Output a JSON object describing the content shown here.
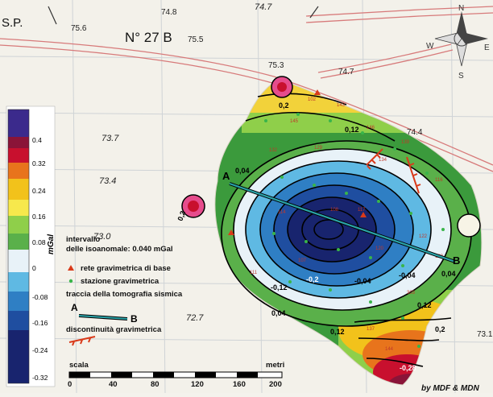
{
  "map": {
    "sheet_text": "S.P.",
    "sheet_number": "N° 27 B",
    "elevations": [
      "75.6",
      "74.8",
      "75.5",
      "74.7",
      "75.3",
      "74.7",
      "73.7",
      "74.4",
      "73.4",
      "73.0",
      "72.7",
      "73.1"
    ],
    "contour_values": [
      "0,2",
      "0,12",
      "0,04",
      "0,2",
      "-0,12",
      "-0,2",
      "-0,04",
      "-0,04",
      "0,04",
      "0,04",
      "0,12",
      "0,12",
      "0,2",
      "-0,28"
    ],
    "profile": {
      "start_label": "A",
      "end_label": "B"
    },
    "credit": "by MDF & MDN",
    "compass": {
      "n": "N",
      "s": "S",
      "e": "E",
      "w": "W"
    }
  },
  "legend": {
    "unit": "mGal",
    "ramp_values": [
      "0.4",
      "0.32",
      "0.24",
      "0.16",
      "0.08",
      "0",
      "-0.08",
      "-0.16",
      "-0.24",
      "-0.32"
    ],
    "interval_title": "intervallo",
    "interval_text": "delle isoanomale: 0.040 mGal",
    "base_network": "rete gravimetrica di base",
    "station": "stazione gravimetrica",
    "seismic_trace": "traccia della tomografia sismica",
    "trace_a": "A",
    "trace_b": "B",
    "discontinuity": "discontinuità gravimetrica"
  },
  "scale": {
    "title": "scala",
    "unit": "metri",
    "ticks": [
      "0",
      "40",
      "80",
      "120",
      "160",
      "200"
    ]
  },
  "colors": {
    "ramp": [
      "#3b2a8c",
      "#c8102e",
      "#e8741c",
      "#f2c21b",
      "#f7e84c",
      "#8fcf4a",
      "#5ab04a",
      "#e8f2f8",
      "#5fb9e3",
      "#2f7fc4",
      "#1f4ea0",
      "#18246e"
    ],
    "accent_line": "#2aa3a8",
    "discontinuity": "#d93a1a"
  }
}
